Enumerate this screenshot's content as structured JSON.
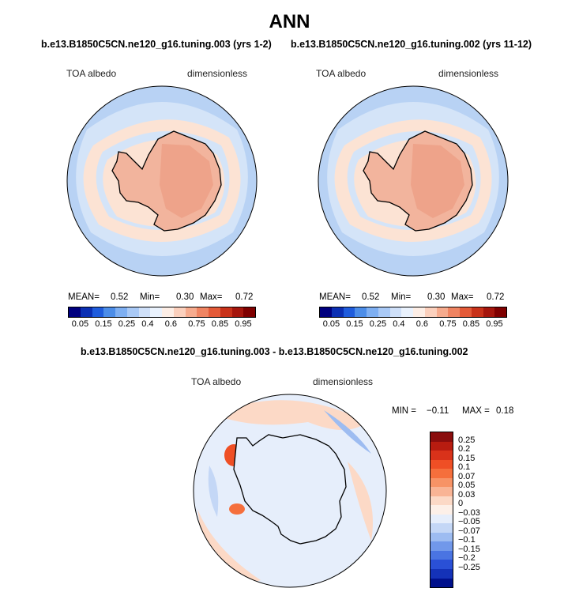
{
  "figure": {
    "season": "ANN",
    "case1_title": "b.e13.B1850C5CN.ne120_g16.tuning.003 (yrs 1-2)",
    "case2_title": "b.e13.B1850C5CN.ne120_g16.tuning.002 (yrs 11-12)",
    "diff_title": "b.e13.B1850C5CN.ne120_g16.tuning.003 - b.e13.B1850C5CN.ne120_g16.tuning.002"
  },
  "colors": {
    "land_outline": "#000000",
    "ocean_low": "#b8d2f4",
    "ocean_mid": "#d4e4f8",
    "ice_pack": "#fce3d4",
    "antarctica": "#f2b49d",
    "antarctica_high": "#eea38a"
  },
  "chart_data": [
    {
      "type": "heatmap",
      "panel": "case1",
      "variable": "TOA albedo",
      "units": "dimensionless",
      "stats": [
        {
          "label": "MEAN=",
          "value": "0.52"
        },
        {
          "label": "Min=",
          "value": "0.30"
        },
        {
          "label": "Max=",
          "value": "0.72"
        }
      ],
      "colorbar": {
        "ticks": [
          "0.05",
          "0.15",
          "0.25",
          "0.4",
          "0.6",
          "0.75",
          "0.85",
          "0.95"
        ],
        "colors": [
          "#00007f",
          "#0b2fb3",
          "#1f5cdc",
          "#4c8de8",
          "#7eaff2",
          "#a9c9f6",
          "#cfe0f9",
          "#eaf2fd",
          "#fdeee6",
          "#fbd0bd",
          "#f6ab8e",
          "#ef8462",
          "#e35a38",
          "#c8321a",
          "#a5160d",
          "#7f0000"
        ]
      }
    },
    {
      "type": "heatmap",
      "panel": "case2",
      "variable": "TOA albedo",
      "units": "dimensionless",
      "stats": [
        {
          "label": "MEAN=",
          "value": "0.52"
        },
        {
          "label": "Min=",
          "value": "0.30"
        },
        {
          "label": "Max=",
          "value": "0.72"
        }
      ],
      "colorbar": {
        "ticks": [
          "0.05",
          "0.15",
          "0.25",
          "0.4",
          "0.6",
          "0.75",
          "0.85",
          "0.95"
        ],
        "colors": [
          "#00007f",
          "#0b2fb3",
          "#1f5cdc",
          "#4c8de8",
          "#7eaff2",
          "#a9c9f6",
          "#cfe0f9",
          "#eaf2fd",
          "#fdeee6",
          "#fbd0bd",
          "#f6ab8e",
          "#ef8462",
          "#e35a38",
          "#c8321a",
          "#a5160d",
          "#7f0000"
        ]
      }
    },
    {
      "type": "heatmap",
      "panel": "difference",
      "variable": "TOA albedo",
      "units": "dimensionless",
      "min_label": "MIN =",
      "min": "−0.11",
      "max_label": "MAX =",
      "max": "0.18",
      "colorbar": {
        "ticks": [
          "0.25",
          "0.2",
          "0.15",
          "0.1",
          "0.07",
          "0.05",
          "0.03",
          "0",
          "−0.03",
          "−0.05",
          "−0.07",
          "−0.1",
          "−0.15",
          "−0.2",
          "−0.25"
        ],
        "colors": [
          "#8a0d0d",
          "#b81c10",
          "#d9321a",
          "#ef4f25",
          "#f56f3c",
          "#f79366",
          "#f9b495",
          "#fcd9c6",
          "#fdf0e8",
          "#e6eefb",
          "#c4d7f6",
          "#9dbcf1",
          "#7198ea",
          "#4a74e2",
          "#2a50d6",
          "#1432b8",
          "#00108c"
        ]
      }
    }
  ]
}
